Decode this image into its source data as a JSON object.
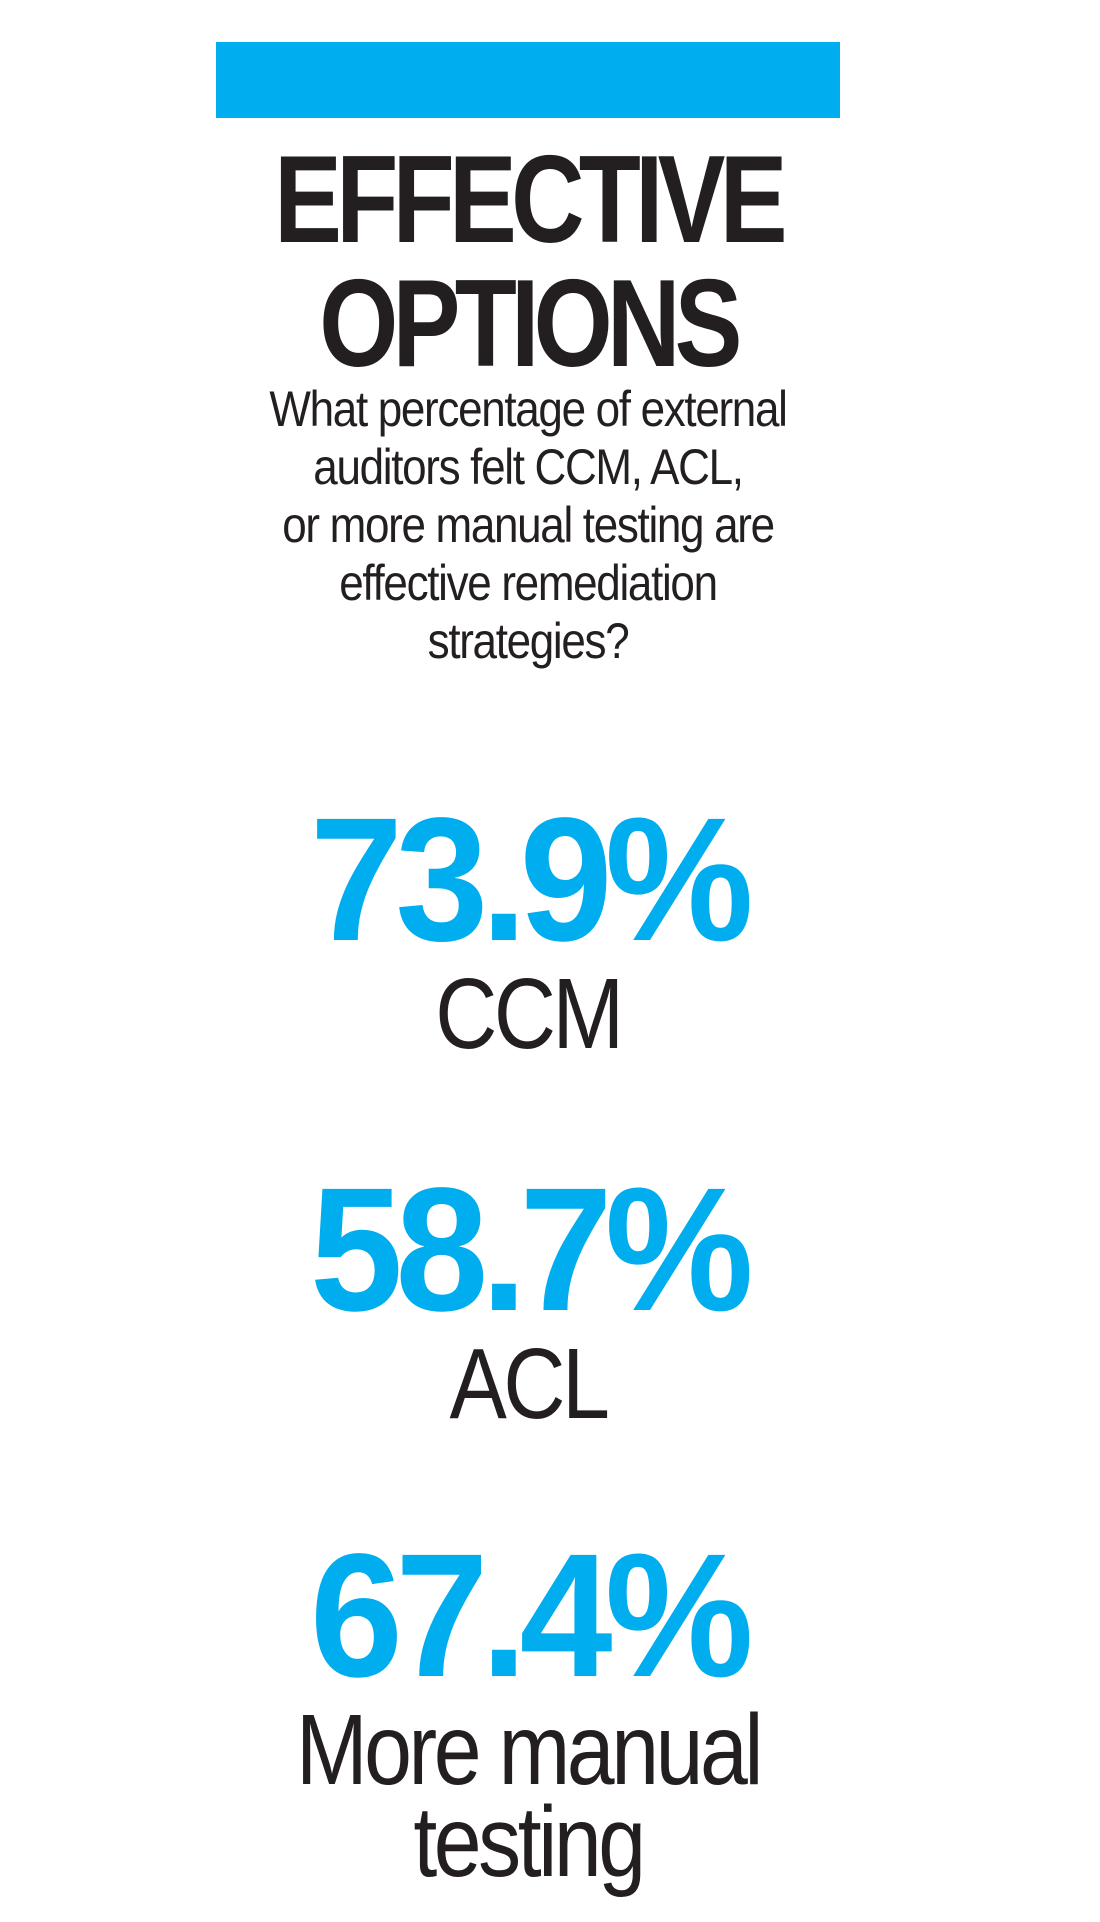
{
  "colors": {
    "accent": "#00adee",
    "text": "#231f20",
    "background": "#ffffff"
  },
  "title": {
    "line1": "EFFECTIVE",
    "line2": "OPTIONS"
  },
  "question": {
    "lines": [
      "What percentage of external",
      "auditors felt CCM, ACL,",
      "or more manual testing are",
      "effective remediation",
      "strategies?"
    ]
  },
  "stats": [
    {
      "value": "73.9%",
      "label_lines": [
        "CCM"
      ]
    },
    {
      "value": "58.7%",
      "label_lines": [
        "ACL"
      ]
    },
    {
      "value": "67.4%",
      "label_lines": [
        "More manual",
        "testing"
      ]
    }
  ]
}
